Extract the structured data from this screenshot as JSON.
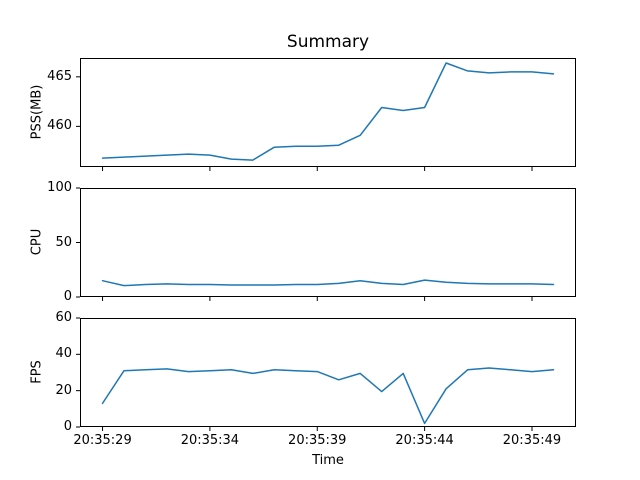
{
  "figure": {
    "title": "Summary",
    "xlabel": "Time",
    "line_color": "#1f77b4",
    "background_color": "#ffffff",
    "spine_color": "#000000"
  },
  "chart_data": [
    {
      "type": "line",
      "name": "pss",
      "ylabel": "PSS(MB)",
      "yticks": [
        460,
        465
      ],
      "ylim": [
        455.9,
        466.9
      ],
      "grid": false,
      "values": [
        456.8,
        456.9,
        457.0,
        457.1,
        457.2,
        457.1,
        456.7,
        456.6,
        457.9,
        458.0,
        458.0,
        458.1,
        459.1,
        461.9,
        461.6,
        461.9,
        466.4,
        465.6,
        465.4,
        465.5,
        465.5,
        465.3
      ]
    },
    {
      "type": "line",
      "name": "cpu",
      "ylabel": "CPU",
      "yticks": [
        0,
        50,
        100
      ],
      "ylim": [
        0,
        100
      ],
      "grid": false,
      "values": [
        15,
        10.5,
        11.5,
        12,
        11.5,
        11.5,
        11,
        11,
        11,
        11.5,
        11.5,
        12.5,
        15,
        12.5,
        11.5,
        15.5,
        13.5,
        12.5,
        12,
        12,
        12,
        11.5
      ]
    },
    {
      "type": "line",
      "name": "fps",
      "ylabel": "FPS",
      "yticks": [
        0,
        20,
        40,
        60
      ],
      "ylim": [
        0,
        60
      ],
      "grid": false,
      "values": [
        13,
        31,
        31.5,
        32,
        30.5,
        31,
        31.5,
        29.5,
        31.5,
        31,
        30.5,
        26,
        29.5,
        19.5,
        29.5,
        2,
        21,
        31.5,
        32.5,
        31.5,
        30.5,
        31.5
      ]
    }
  ],
  "x_axis": {
    "x": [
      "20:35:29",
      "20:35:30",
      "20:35:31",
      "20:35:32",
      "20:35:33",
      "20:35:34",
      "20:35:35",
      "20:35:36",
      "20:35:37",
      "20:35:38",
      "20:35:39",
      "20:35:40",
      "20:35:41",
      "20:35:42",
      "20:35:43",
      "20:35:44",
      "20:35:45",
      "20:35:46",
      "20:35:47",
      "20:35:48",
      "20:35:49",
      "20:35:50"
    ],
    "tick_indices": [
      0,
      5,
      10,
      15,
      20
    ],
    "tick_labels": [
      "20:35:29",
      "20:35:34",
      "20:35:39",
      "20:35:44",
      "20:35:49"
    ],
    "xlim_index": [
      -1.05,
      22.05
    ]
  }
}
